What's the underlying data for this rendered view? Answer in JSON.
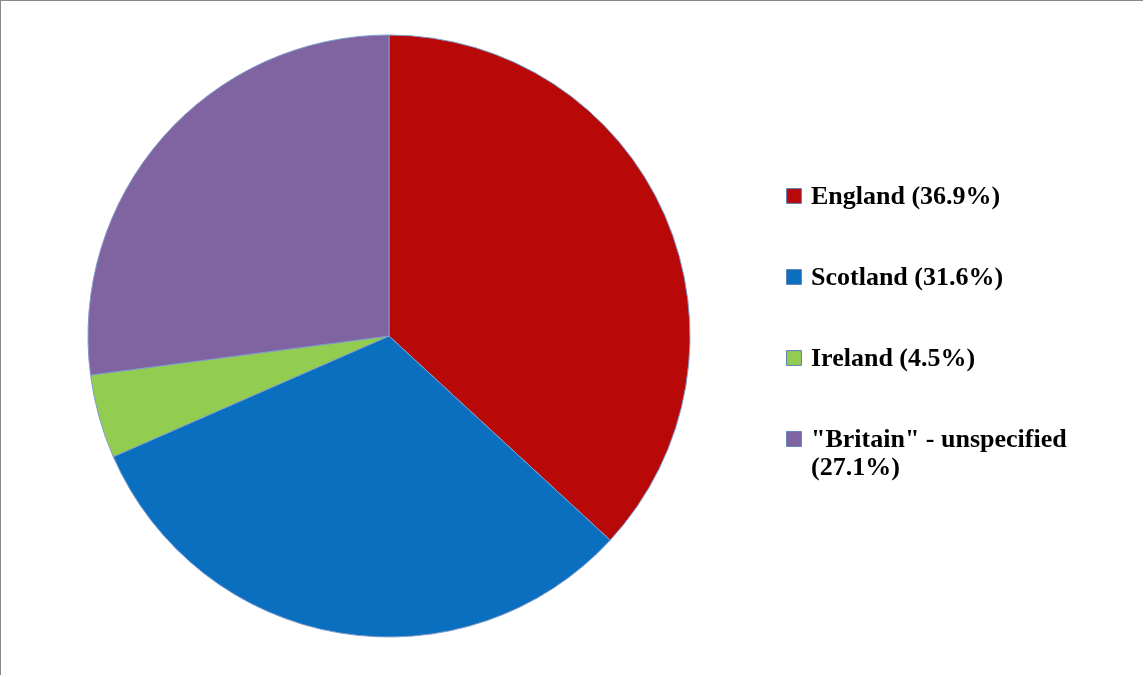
{
  "chart_data": {
    "type": "pie",
    "categories": [
      "England (36.9%)",
      "Scotland (31.6%)",
      "Ireland (4.5%)",
      "\"Britain\" - unspecified (27.1%)"
    ],
    "values": [
      36.9,
      31.6,
      4.5,
      27.1
    ],
    "colors": [
      "#b80808",
      "#0a6fbf",
      "#92cd50",
      "#8064a2"
    ],
    "legend": "right"
  }
}
